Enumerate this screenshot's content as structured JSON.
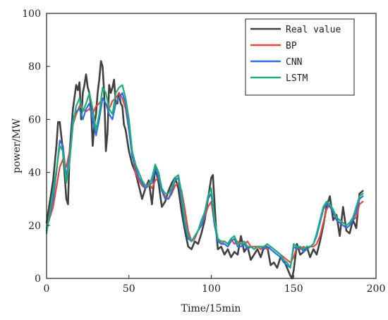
{
  "chart_data": {
    "type": "line",
    "xlabel": "Time/15min",
    "ylabel": "power/MW",
    "xlim": [
      0,
      200
    ],
    "ylim": [
      0,
      100
    ],
    "xticks": [
      0,
      50,
      100,
      150,
      200
    ],
    "yticks": [
      0,
      20,
      40,
      60,
      80,
      100
    ],
    "grid": false,
    "legend_position": "top-right",
    "series": [
      {
        "name": "Real value",
        "color": "#404040",
        "x": [
          0,
          2,
          4,
          6,
          7,
          8,
          10,
          12,
          13,
          14,
          16,
          18,
          19,
          20,
          21,
          22,
          23,
          24,
          25,
          26,
          27,
          28,
          29,
          30,
          31,
          32,
          33,
          34,
          35,
          36,
          37,
          38,
          39,
          40,
          41,
          42,
          43,
          44,
          45,
          46,
          47,
          48,
          50,
          52,
          54,
          56,
          58,
          60,
          62,
          64,
          66,
          68,
          70,
          72,
          74,
          76,
          78,
          80,
          82,
          84,
          86,
          88,
          90,
          92,
          94,
          96,
          98,
          100,
          101,
          102,
          103,
          104,
          106,
          108,
          110,
          112,
          114,
          116,
          118,
          120,
          122,
          124,
          126,
          128,
          130,
          132,
          134,
          136,
          138,
          140,
          142,
          144,
          146,
          148,
          149,
          150,
          152,
          154,
          156,
          158,
          160,
          162,
          164,
          166,
          168,
          170,
          172,
          174,
          176,
          178,
          180,
          182,
          184,
          186,
          188,
          190,
          192
        ],
        "values": [
          21,
          29,
          37,
          50,
          59,
          59,
          48,
          30,
          28,
          48,
          64,
          73,
          71,
          74,
          60,
          70,
          73,
          77,
          72,
          70,
          65,
          50,
          58,
          62,
          70,
          75,
          82,
          80,
          70,
          48,
          55,
          73,
          70,
          72,
          75,
          66,
          66,
          70,
          66,
          65,
          58,
          56,
          48,
          43,
          40,
          35,
          30,
          34,
          37,
          28,
          42,
          36,
          27,
          29,
          33,
          36,
          38,
          34,
          25,
          18,
          12,
          11,
          14,
          13,
          17,
          22,
          30,
          38,
          39,
          28,
          18,
          11,
          12,
          9,
          11,
          8,
          10,
          9,
          16,
          10,
          12,
          7,
          9,
          11,
          8,
          12,
          12,
          5,
          6,
          4,
          8,
          7,
          4,
          1,
          0,
          3,
          13,
          9,
          10,
          12,
          8,
          11,
          9,
          14,
          20,
          27,
          31,
          22,
          24,
          16,
          27,
          18,
          17,
          22,
          19,
          32,
          33
        ]
      },
      {
        "name": "BP",
        "color": "#e64640",
        "x": [
          0,
          4,
          8,
          10,
          12,
          14,
          16,
          18,
          20,
          22,
          24,
          26,
          28,
          30,
          32,
          34,
          36,
          38,
          40,
          42,
          44,
          46,
          48,
          50,
          52,
          54,
          56,
          58,
          60,
          62,
          64,
          66,
          68,
          70,
          72,
          74,
          76,
          78,
          80,
          82,
          84,
          86,
          88,
          90,
          92,
          94,
          96,
          98,
          100,
          102,
          104,
          106,
          108,
          110,
          112,
          114,
          116,
          118,
          120,
          122,
          124,
          126,
          128,
          130,
          132,
          134,
          136,
          138,
          140,
          142,
          144,
          146,
          148,
          150,
          152,
          154,
          156,
          158,
          160,
          162,
          164,
          166,
          168,
          170,
          172,
          174,
          176,
          178,
          180,
          182,
          184,
          186,
          188,
          190,
          192
        ],
        "values": [
          19,
          27,
          42,
          45,
          42,
          48,
          58,
          62,
          65,
          64,
          63,
          64,
          62,
          65,
          66,
          68,
          66,
          64,
          67,
          68,
          70,
          68,
          64,
          56,
          47,
          40,
          37,
          35,
          34,
          36,
          34,
          37,
          38,
          34,
          31,
          30,
          32,
          35,
          36,
          33,
          26,
          18,
          14,
          15,
          18,
          20,
          23,
          27,
          29,
          20,
          15,
          13,
          14,
          13,
          15,
          13,
          14,
          13,
          13,
          14,
          12,
          12,
          12,
          11,
          12,
          11,
          12,
          11,
          10,
          9,
          8,
          7,
          6,
          8,
          12,
          11,
          12,
          11,
          12,
          12,
          13,
          16,
          21,
          26,
          28,
          25,
          23,
          22,
          21,
          20,
          21,
          22,
          23,
          28,
          29
        ]
      },
      {
        "name": "CNN",
        "color": "#2f6fe0",
        "x": [
          0,
          4,
          6,
          8,
          10,
          12,
          14,
          16,
          18,
          20,
          22,
          24,
          26,
          28,
          30,
          32,
          34,
          36,
          38,
          40,
          42,
          44,
          46,
          48,
          50,
          52,
          54,
          56,
          58,
          60,
          62,
          64,
          66,
          68,
          70,
          72,
          74,
          76,
          78,
          80,
          82,
          84,
          86,
          88,
          90,
          92,
          94,
          96,
          98,
          100,
          102,
          104,
          106,
          108,
          110,
          112,
          114,
          116,
          118,
          120,
          122,
          124,
          126,
          128,
          130,
          132,
          134,
          136,
          138,
          140,
          142,
          144,
          146,
          148,
          150,
          152,
          154,
          156,
          158,
          160,
          162,
          164,
          166,
          168,
          170,
          172,
          174,
          176,
          178,
          180,
          182,
          184,
          186,
          188,
          190,
          192
        ],
        "values": [
          18,
          30,
          40,
          52,
          50,
          38,
          46,
          60,
          63,
          64,
          60,
          64,
          66,
          60,
          54,
          60,
          68,
          66,
          62,
          60,
          66,
          68,
          70,
          66,
          56,
          46,
          42,
          38,
          36,
          34,
          35,
          36,
          42,
          38,
          33,
          30,
          30,
          33,
          37,
          38,
          30,
          20,
          15,
          14,
          16,
          18,
          20,
          24,
          30,
          32,
          20,
          14,
          13,
          13,
          12,
          14,
          15,
          12,
          12,
          13,
          11,
          12,
          11,
          12,
          12,
          11,
          12,
          11,
          10,
          9,
          8,
          6,
          5,
          4,
          12,
          11,
          12,
          10,
          11,
          12,
          13,
          16,
          21,
          26,
          28,
          27,
          25,
          22,
          21,
          20,
          19,
          20,
          22,
          25,
          30,
          31
        ]
      },
      {
        "name": "LSTM",
        "color": "#1fae78",
        "x": [
          0,
          4,
          6,
          8,
          10,
          12,
          14,
          16,
          18,
          20,
          22,
          24,
          26,
          28,
          30,
          32,
          34,
          36,
          38,
          40,
          42,
          44,
          46,
          48,
          50,
          52,
          54,
          56,
          58,
          60,
          62,
          64,
          66,
          68,
          70,
          72,
          74,
          76,
          78,
          80,
          82,
          84,
          86,
          88,
          90,
          92,
          94,
          96,
          98,
          100,
          102,
          104,
          106,
          108,
          110,
          112,
          114,
          116,
          118,
          120,
          122,
          124,
          126,
          128,
          130,
          132,
          134,
          136,
          138,
          140,
          142,
          144,
          146,
          148,
          150,
          152,
          154,
          156,
          158,
          160,
          162,
          164,
          166,
          168,
          170,
          172,
          174,
          176,
          178,
          180,
          182,
          184,
          186,
          188,
          190,
          192
        ],
        "values": [
          17,
          33,
          41,
          50,
          48,
          36,
          44,
          58,
          65,
          68,
          63,
          66,
          70,
          64,
          56,
          62,
          72,
          70,
          64,
          62,
          70,
          72,
          73,
          68,
          60,
          48,
          43,
          40,
          37,
          35,
          35,
          38,
          43,
          40,
          34,
          32,
          32,
          34,
          38,
          39,
          32,
          22,
          16,
          14,
          16,
          18,
          22,
          25,
          31,
          34,
          22,
          15,
          14,
          14,
          13,
          15,
          16,
          13,
          13,
          14,
          12,
          12,
          11,
          12,
          12,
          12,
          13,
          12,
          11,
          10,
          9,
          7,
          6,
          4,
          13,
          12,
          12,
          11,
          12,
          12,
          13,
          17,
          22,
          27,
          29,
          28,
          26,
          23,
          22,
          21,
          20,
          21,
          23,
          27,
          31,
          32
        ]
      }
    ]
  }
}
